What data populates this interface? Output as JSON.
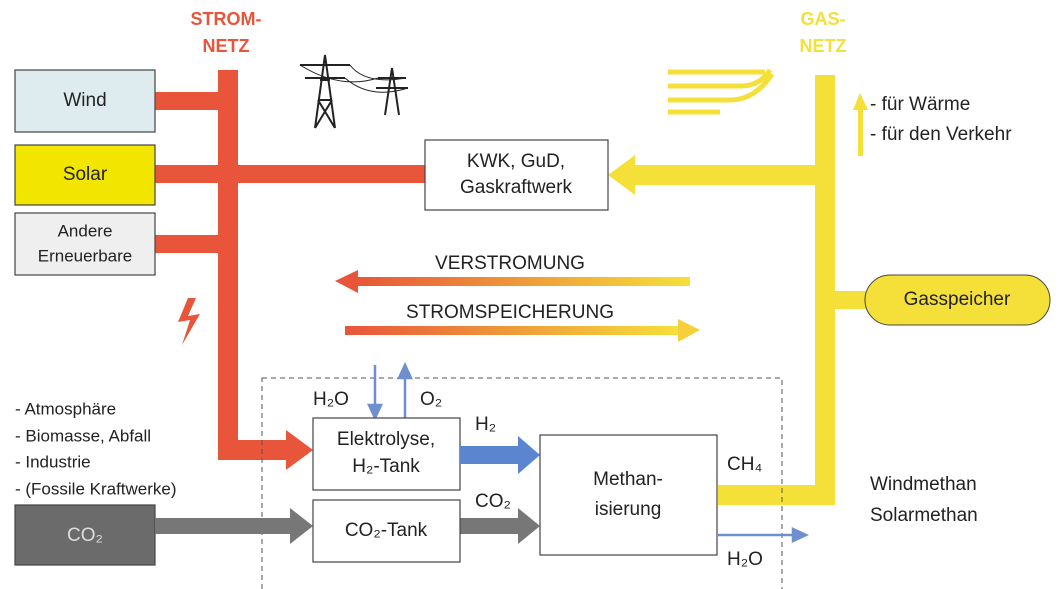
{
  "grids": {
    "strom": [
      "STROM-",
      "NETZ"
    ],
    "gas": [
      "GAS-",
      "NETZ"
    ]
  },
  "sources": [
    "Wind",
    "Solar",
    [
      "Andere",
      "Erneuerbare"
    ]
  ],
  "kraftwerk": [
    "KWK, GuD,",
    "Gaskraftwerk"
  ],
  "gas_uses": [
    "- für Wärme",
    "- für den Verkehr"
  ],
  "gasspeicher": "Gasspeicher",
  "flows": {
    "verstromung": "VERSTROMUNG",
    "stromspeicherung": "STROMSPEICHERUNG"
  },
  "co2_sources": [
    "- Atmosphäre",
    "- Biomasse, Abfall",
    "- Industrie",
    "- (Fossile Kraftwerke)"
  ],
  "co2_box": "CO₂",
  "elektrolyse": [
    "Elektrolyse,",
    "H₂-Tank"
  ],
  "co2_tank": "CO₂-Tank",
  "methanisierung": [
    "Methan-",
    "isierung"
  ],
  "labels": {
    "h2o_in": "H₂O",
    "o2": "O₂",
    "h2": "H₂",
    "co2": "CO₂",
    "ch4": "CH₄",
    "h2o_out": "H₂O"
  },
  "products": [
    "Windmethan",
    "Solarmethan"
  ]
}
